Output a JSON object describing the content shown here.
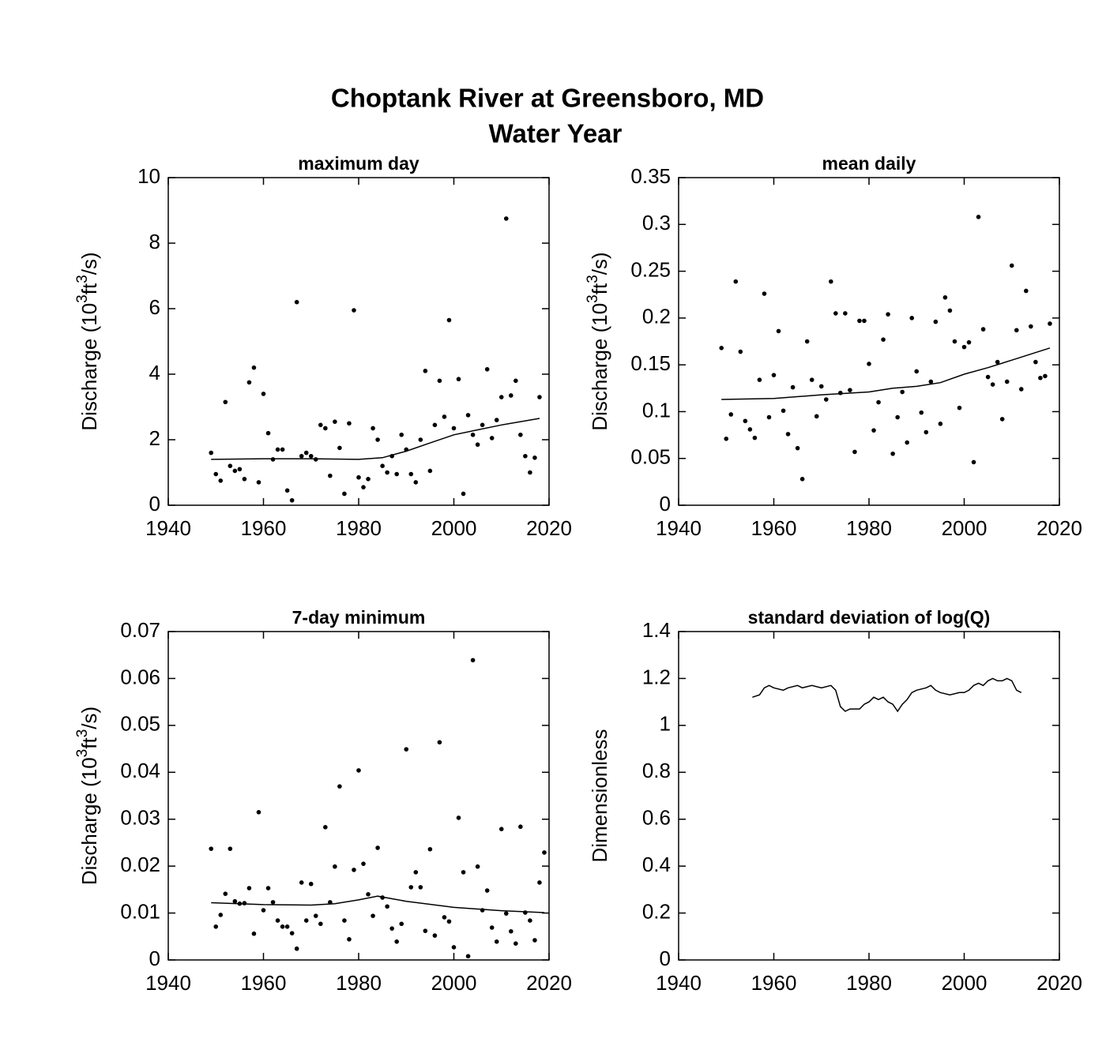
{
  "title": [
    "Choptank River at Greensboro, MD",
    "Water Year"
  ],
  "chart_data": [
    {
      "type": "scatter",
      "title": "maximum day",
      "ylabel": [
        "Discharge (10",
        "3",
        "ft",
        "3",
        "/s)"
      ],
      "xlim": [
        1940,
        2020
      ],
      "xticks": [
        1940,
        1960,
        1980,
        2000,
        2020
      ],
      "ylim": [
        0,
        10
      ],
      "yticks": [
        0,
        2,
        4,
        6,
        8,
        10
      ],
      "color": "#000000",
      "x": [
        1949,
        1950,
        1951,
        1952,
        1953,
        1954,
        1955,
        1956,
        1957,
        1958,
        1959,
        1960,
        1961,
        1962,
        1963,
        1964,
        1965,
        1966,
        1967,
        1968,
        1969,
        1970,
        1971,
        1972,
        1973,
        1974,
        1975,
        1976,
        1977,
        1978,
        1979,
        1980,
        1981,
        1982,
        1983,
        1984,
        1985,
        1986,
        1987,
        1988,
        1989,
        1990,
        1991,
        1992,
        1993,
        1994,
        1995,
        1996,
        1997,
        1998,
        1999,
        2000,
        2001,
        2002,
        2003,
        2004,
        2005,
        2006,
        2007,
        2008,
        2009,
        2010,
        2011,
        2012,
        2013,
        2014,
        2015,
        2016,
        2017,
        2018
      ],
      "values": [
        1.6,
        0.95,
        0.75,
        3.15,
        1.2,
        1.05,
        1.1,
        0.8,
        3.75,
        4.2,
        0.7,
        3.4,
        2.2,
        1.4,
        1.7,
        1.7,
        0.45,
        0.15,
        6.2,
        1.5,
        1.6,
        1.5,
        1.4,
        2.45,
        2.35,
        0.9,
        2.55,
        1.75,
        0.35,
        2.5,
        5.95,
        0.85,
        0.55,
        0.8,
        2.35,
        2.0,
        1.2,
        1.0,
        1.5,
        0.95,
        2.15,
        1.7,
        0.95,
        0.7,
        2.0,
        4.1,
        1.05,
        2.45,
        3.8,
        2.7,
        5.65,
        2.35,
        3.85,
        0.35,
        2.75,
        2.15,
        1.85,
        2.45,
        4.15,
        2.05,
        2.6,
        3.3,
        8.75,
        3.35,
        3.8,
        2.15,
        1.5,
        1.0,
        1.45,
        3.3
      ],
      "trend": {
        "x": [
          1949,
          1960,
          1970,
          1980,
          1985,
          1990,
          1995,
          2000,
          2005,
          2010,
          2018
        ],
        "values": [
          1.4,
          1.42,
          1.42,
          1.4,
          1.45,
          1.65,
          1.9,
          2.15,
          2.3,
          2.45,
          2.65
        ]
      }
    },
    {
      "type": "scatter",
      "title": "mean daily",
      "ylabel": [
        "Discharge (10",
        "3",
        "ft",
        "3",
        "/s)"
      ],
      "xlim": [
        1940,
        2020
      ],
      "xticks": [
        1940,
        1960,
        1980,
        2000,
        2020
      ],
      "ylim": [
        0,
        0.35
      ],
      "yticks": [
        0,
        0.05,
        0.1,
        0.15,
        0.2,
        0.25,
        0.3,
        0.35
      ],
      "color": "#000000",
      "x": [
        1949,
        1950,
        1951,
        1952,
        1953,
        1954,
        1955,
        1956,
        1957,
        1958,
        1959,
        1960,
        1961,
        1962,
        1963,
        1964,
        1965,
        1966,
        1967,
        1968,
        1969,
        1970,
        1971,
        1972,
        1973,
        1974,
        1975,
        1976,
        1977,
        1978,
        1979,
        1980,
        1981,
        1982,
        1983,
        1984,
        1985,
        1986,
        1987,
        1988,
        1989,
        1990,
        1991,
        1992,
        1993,
        1994,
        1995,
        1996,
        1997,
        1998,
        1999,
        2000,
        2001,
        2002,
        2003,
        2004,
        2005,
        2006,
        2007,
        2008,
        2009,
        2010,
        2011,
        2012,
        2013,
        2014,
        2015,
        2016,
        2017,
        2018
      ],
      "values": [
        0.168,
        0.071,
        0.097,
        0.239,
        0.164,
        0.09,
        0.081,
        0.072,
        0.134,
        0.226,
        0.094,
        0.139,
        0.186,
        0.101,
        0.076,
        0.126,
        0.061,
        0.028,
        0.175,
        0.134,
        0.095,
        0.127,
        0.113,
        0.239,
        0.205,
        0.12,
        0.205,
        0.123,
        0.057,
        0.197,
        0.197,
        0.151,
        0.08,
        0.11,
        0.177,
        0.204,
        0.055,
        0.094,
        0.121,
        0.067,
        0.2,
        0.143,
        0.099,
        0.078,
        0.132,
        0.196,
        0.087,
        0.222,
        0.208,
        0.175,
        0.104,
        0.169,
        0.174,
        0.046,
        0.308,
        0.188,
        0.137,
        0.129,
        0.153,
        0.092,
        0.132,
        0.256,
        0.187,
        0.124,
        0.229,
        0.191,
        0.153,
        0.136,
        0.138,
        0.194
      ],
      "trend": {
        "x": [
          1949,
          1960,
          1970,
          1980,
          1985,
          1990,
          1995,
          2000,
          2005,
          2010,
          2018
        ],
        "values": [
          0.113,
          0.114,
          0.118,
          0.121,
          0.125,
          0.127,
          0.131,
          0.14,
          0.147,
          0.155,
          0.168
        ]
      }
    },
    {
      "type": "scatter",
      "title": "7-day minimum",
      "ylabel": [
        "Discharge (10",
        "3",
        "ft",
        "3",
        "/s)"
      ],
      "xlim": [
        1940,
        2020
      ],
      "xticks": [
        1940,
        1960,
        1980,
        2000,
        2020
      ],
      "ylim": [
        0,
        0.07
      ],
      "yticks": [
        0,
        0.01,
        0.02,
        0.03,
        0.04,
        0.05,
        0.06,
        0.07
      ],
      "color": "#000000",
      "x": [
        1949,
        1950,
        1951,
        1952,
        1953,
        1954,
        1955,
        1956,
        1957,
        1958,
        1959,
        1960,
        1961,
        1962,
        1963,
        1964,
        1965,
        1966,
        1967,
        1968,
        1969,
        1970,
        1971,
        1972,
        1973,
        1974,
        1975,
        1976,
        1977,
        1978,
        1979,
        1980,
        1981,
        1982,
        1983,
        1984,
        1985,
        1986,
        1987,
        1988,
        1989,
        1990,
        1991,
        1992,
        1993,
        1994,
        1995,
        1996,
        1997,
        1998,
        1999,
        2000,
        2001,
        2002,
        2003,
        2004,
        2005,
        2006,
        2007,
        2008,
        2009,
        2010,
        2011,
        2012,
        2013,
        2014,
        2015,
        2016,
        2017,
        2018,
        2019
      ],
      "values": [
        0.0237,
        0.0071,
        0.0096,
        0.0141,
        0.0237,
        0.0125,
        0.012,
        0.0121,
        0.0153,
        0.0056,
        0.0315,
        0.0106,
        0.0153,
        0.0123,
        0.0084,
        0.0071,
        0.0071,
        0.0057,
        0.0024,
        0.0165,
        0.0084,
        0.0162,
        0.0094,
        0.0077,
        0.0283,
        0.0123,
        0.0199,
        0.037,
        0.0084,
        0.0044,
        0.0192,
        0.0404,
        0.0205,
        0.014,
        0.0094,
        0.0239,
        0.0133,
        0.0114,
        0.0067,
        0.0039,
        0.0077,
        0.0449,
        0.0155,
        0.0187,
        0.0155,
        0.0062,
        0.0236,
        0.0052,
        0.0464,
        0.0091,
        0.0082,
        0.0027,
        0.0303,
        0.0187,
        0.0008,
        0.0639,
        0.0199,
        0.0106,
        0.0148,
        0.0069,
        0.0039,
        0.0279,
        0.0099,
        0.0061,
        0.0035,
        0.0284,
        0.0101,
        0.0084,
        0.0042,
        0.0165,
        0.0229
      ],
      "trend": {
        "x": [
          1949,
          1960,
          1970,
          1975,
          1980,
          1984,
          1990,
          2000,
          2010,
          2019
        ],
        "values": [
          0.0122,
          0.0118,
          0.0117,
          0.012,
          0.0128,
          0.0136,
          0.0125,
          0.0112,
          0.0105,
          0.0101
        ]
      }
    },
    {
      "type": "line",
      "title": "standard deviation of log(Q)",
      "ylabel": [
        "Dimensionless"
      ],
      "xlim": [
        1940,
        2020
      ],
      "xticks": [
        1940,
        1960,
        1980,
        2000,
        2020
      ],
      "ylim": [
        0,
        1.4
      ],
      "yticks": [
        0,
        0.2,
        0.4,
        0.6,
        0.8,
        1,
        1.2,
        1.4
      ],
      "color": "#000000",
      "x": [
        1955.5,
        1957,
        1958,
        1959,
        1960,
        1962,
        1963,
        1965,
        1966,
        1968,
        1970,
        1972,
        1973,
        1974,
        1975,
        1976,
        1978,
        1979,
        1980,
        1981,
        1982,
        1983,
        1984,
        1985,
        1986,
        1987,
        1988,
        1989,
        1990,
        1992,
        1993,
        1994,
        1995,
        1997,
        1999,
        2000,
        2001,
        2002,
        2003,
        2004,
        2005,
        2006,
        2007,
        2008,
        2009,
        2010,
        2011,
        2012
      ],
      "values": [
        1.12,
        1.13,
        1.16,
        1.17,
        1.16,
        1.15,
        1.16,
        1.17,
        1.16,
        1.17,
        1.16,
        1.17,
        1.15,
        1.08,
        1.06,
        1.07,
        1.07,
        1.09,
        1.1,
        1.12,
        1.11,
        1.12,
        1.1,
        1.09,
        1.06,
        1.09,
        1.11,
        1.14,
        1.15,
        1.16,
        1.17,
        1.15,
        1.14,
        1.13,
        1.14,
        1.14,
        1.15,
        1.17,
        1.18,
        1.17,
        1.19,
        1.2,
        1.19,
        1.19,
        1.2,
        1.19,
        1.15,
        1.14
      ]
    }
  ]
}
